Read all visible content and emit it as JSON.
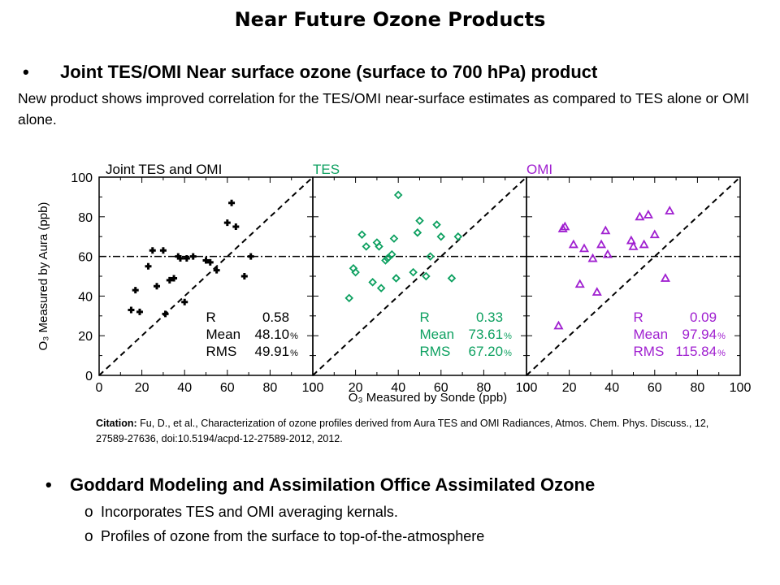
{
  "title": "Near Future Ozone Products",
  "bullet1": {
    "marker": "•",
    "heading": "Joint TES/OMI Near surface ozone (surface to 700 hPa) product",
    "text": "New product shows improved correlation for the TES/OMI near-surface estimates as compared to TES alone or OMI alone."
  },
  "citation": {
    "label": "Citation:",
    "text": "Fu, D., et al., Characterization of ozone profiles derived from Aura TES and OMI Radiances, Atmos. Chem. Phys. Discuss., 12, 27589-27636, doi:10.5194/acpd-12-27589-2012, 2012."
  },
  "bullet2": {
    "marker": "•",
    "heading": "Goddard Modeling and Assimilation Office Assimilated Ozone",
    "items": [
      {
        "marker": "o",
        "text": "Incorporates TES and OMI averaging kernals."
      },
      {
        "marker": "o",
        "text": "Profiles of ozone from the surface to top-of-the-atmosphere"
      }
    ]
  },
  "chart_data": {
    "type": "scatter",
    "xlabel": "O₃ Measured by Sonde (ppb)",
    "ylabel": "O₃ Measured by Aura (ppb)",
    "xlim": [
      0,
      100
    ],
    "ylim": [
      0,
      100
    ],
    "x_ticks": [
      "0",
      "20",
      "40",
      "60",
      "80",
      "100"
    ],
    "y_ticks": [
      "0",
      "20",
      "40",
      "60",
      "80",
      "100"
    ],
    "reference_lines": [
      "1:1 dashed diagonal",
      "horizontal dash-dot line at 60 ppb"
    ],
    "panels": [
      {
        "name": "Joint TES and OMI",
        "color": "#000000",
        "marker": "cross",
        "points": [
          [
            15,
            33
          ],
          [
            17,
            43
          ],
          [
            19,
            32
          ],
          [
            23,
            55
          ],
          [
            25,
            63
          ],
          [
            27,
            45
          ],
          [
            30,
            63
          ],
          [
            31,
            31
          ],
          [
            33,
            48
          ],
          [
            35,
            49
          ],
          [
            37,
            60
          ],
          [
            38,
            59
          ],
          [
            40,
            37
          ],
          [
            41,
            59
          ],
          [
            44,
            60
          ],
          [
            50,
            58
          ],
          [
            52,
            57
          ],
          [
            55,
            53
          ],
          [
            60,
            77
          ],
          [
            62,
            87
          ],
          [
            64,
            75
          ],
          [
            68,
            50
          ],
          [
            71,
            60
          ]
        ],
        "stats": [
          {
            "label": "R",
            "value": "0.58",
            "unit": ""
          },
          {
            "label": "Mean",
            "value": "48.10",
            "unit": "%"
          },
          {
            "label": "RMS",
            "value": "49.91",
            "unit": "%"
          }
        ]
      },
      {
        "name": "TES",
        "color": "#0da060",
        "marker": "diamond",
        "points": [
          [
            17,
            39
          ],
          [
            19,
            54
          ],
          [
            20,
            52
          ],
          [
            23,
            71
          ],
          [
            25,
            65
          ],
          [
            28,
            47
          ],
          [
            30,
            67
          ],
          [
            31,
            65
          ],
          [
            32,
            44
          ],
          [
            34,
            58
          ],
          [
            35,
            59
          ],
          [
            37,
            61
          ],
          [
            38,
            69
          ],
          [
            39,
            49
          ],
          [
            40,
            91
          ],
          [
            47,
            52
          ],
          [
            49,
            72
          ],
          [
            50,
            78
          ],
          [
            53,
            50
          ],
          [
            55,
            60
          ],
          [
            58,
            76
          ],
          [
            60,
            70
          ],
          [
            65,
            49
          ],
          [
            68,
            70
          ]
        ],
        "stats": [
          {
            "label": "R",
            "value": "0.33",
            "unit": ""
          },
          {
            "label": "Mean",
            "value": "73.61",
            "unit": "%"
          },
          {
            "label": "RMS",
            "value": "67.20",
            "unit": "%"
          }
        ]
      },
      {
        "name": "OMI",
        "color": "#a020d0",
        "marker": "triangle",
        "points": [
          [
            15,
            25
          ],
          [
            17,
            74
          ],
          [
            18,
            75
          ],
          [
            22,
            66
          ],
          [
            25,
            46
          ],
          [
            27,
            64
          ],
          [
            31,
            59
          ],
          [
            33,
            42
          ],
          [
            35,
            66
          ],
          [
            37,
            73
          ],
          [
            38,
            61
          ],
          [
            49,
            68
          ],
          [
            50,
            65
          ],
          [
            53,
            80
          ],
          [
            55,
            66
          ],
          [
            57,
            81
          ],
          [
            60,
            71
          ],
          [
            65,
            49
          ],
          [
            67,
            83
          ]
        ],
        "stats": [
          {
            "label": "R",
            "value": "0.09",
            "unit": ""
          },
          {
            "label": "Mean",
            "value": "97.94",
            "unit": "%"
          },
          {
            "label": "RMS",
            "value": "115.84",
            "unit": "%"
          }
        ]
      }
    ]
  }
}
